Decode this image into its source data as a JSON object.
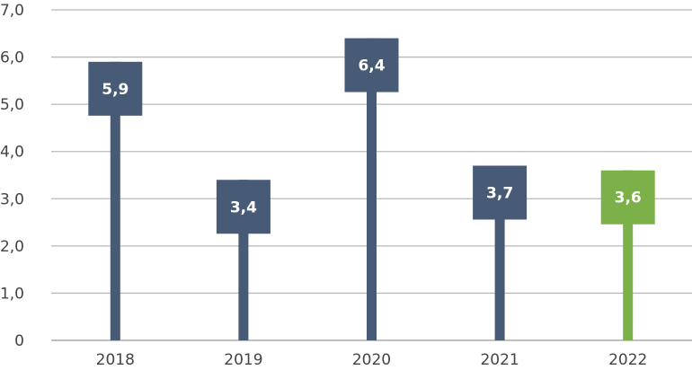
{
  "chart_data": {
    "type": "bar",
    "title": "",
    "xlabel": "",
    "ylabel": "",
    "categories": [
      "2018",
      "2019",
      "2020",
      "2021",
      "2022"
    ],
    "values": [
      5.9,
      3.4,
      6.4,
      3.7,
      3.6
    ],
    "value_labels": [
      "5,9",
      "3,4",
      "6,4",
      "3,7",
      "3,6"
    ],
    "bar_colors": [
      "#475a76",
      "#475a76",
      "#475a76",
      "#475a76",
      "#7bb148"
    ],
    "ylim": [
      0,
      7
    ],
    "yticks": [
      0,
      1,
      2,
      3,
      4,
      5,
      6,
      7
    ],
    "ytick_labels": [
      "0",
      "1,0",
      "2,0",
      "3,0",
      "4,0",
      "5,0",
      "6,0",
      "7,0"
    ],
    "grid": true,
    "legend": "none"
  }
}
